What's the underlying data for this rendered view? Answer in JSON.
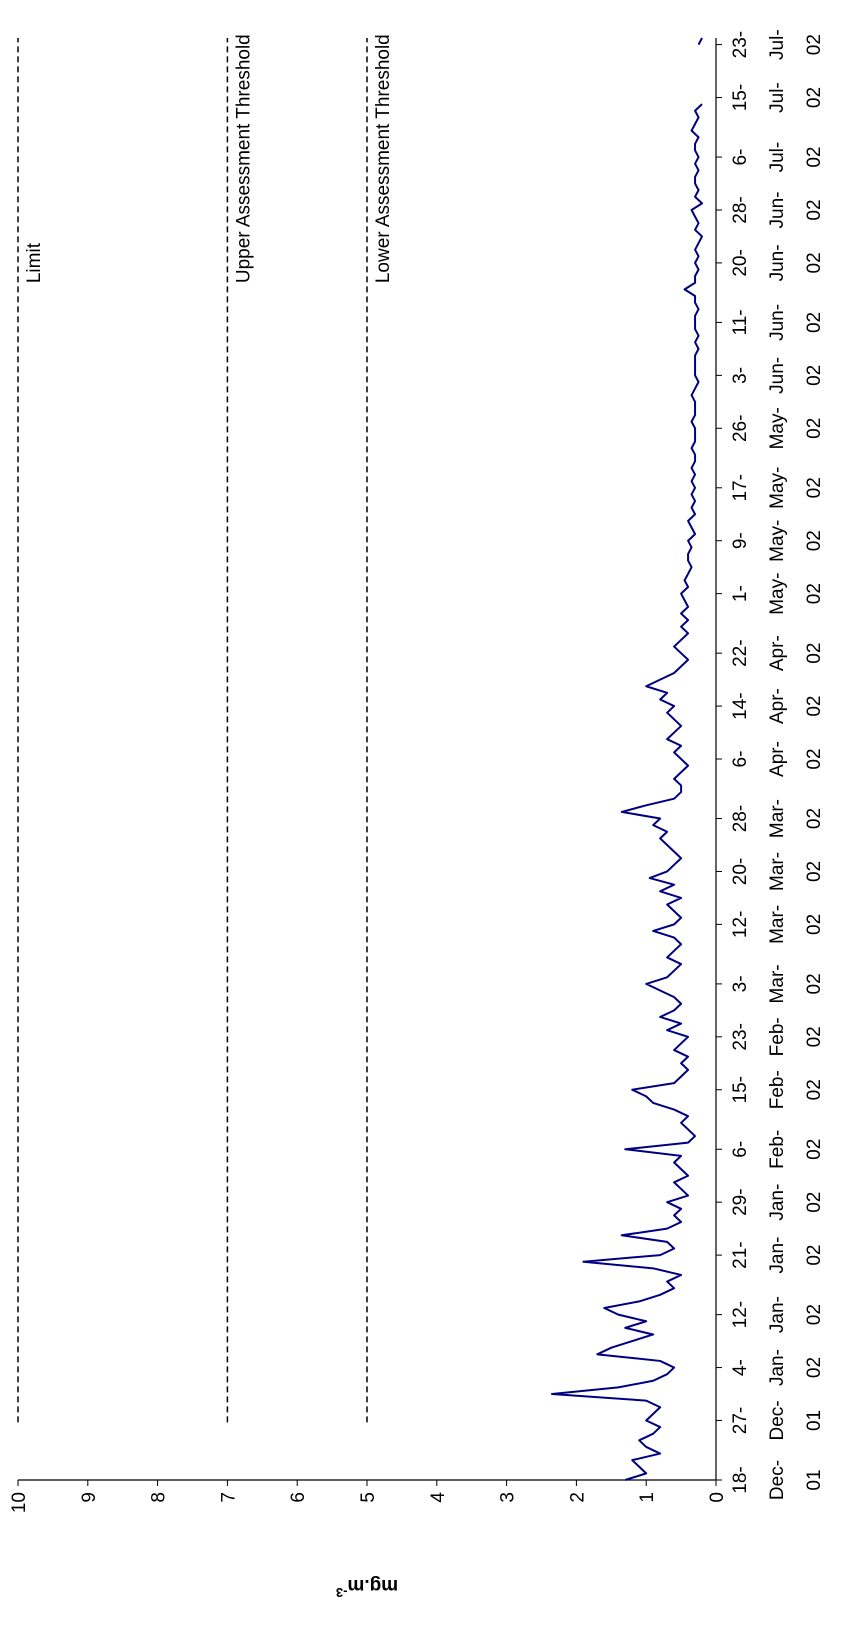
{
  "chart_data": {
    "type": "line",
    "ylabel": {
      "text": "mg.m",
      "superscript": "-3"
    },
    "ylim": [
      0,
      10
    ],
    "yticks": [
      0,
      1,
      2,
      3,
      4,
      5,
      6,
      7,
      8,
      9,
      10
    ],
    "xlim": [
      "2001-12-18",
      "2002-07-24"
    ],
    "xticks": [
      {
        "value": "2001-12-18",
        "label": "18-Dec-01"
      },
      {
        "value": "2001-12-27",
        "label": "27-Dec-01"
      },
      {
        "value": "2002-01-04",
        "label": "4-Jan-02"
      },
      {
        "value": "2002-01-12",
        "label": "12-Jan-02"
      },
      {
        "value": "2002-01-21",
        "label": "21-Jan-02"
      },
      {
        "value": "2002-01-29",
        "label": "29-Jan-02"
      },
      {
        "value": "2002-02-06",
        "label": "6-Feb-02"
      },
      {
        "value": "2002-02-15",
        "label": "15-Feb-02"
      },
      {
        "value": "2002-02-23",
        "label": "23-Feb-02"
      },
      {
        "value": "2002-03-03",
        "label": "3-Mar-02"
      },
      {
        "value": "2002-03-12",
        "label": "12-Mar-02"
      },
      {
        "value": "2002-03-20",
        "label": "20-Mar-02"
      },
      {
        "value": "2002-03-28",
        "label": "28-Mar-02"
      },
      {
        "value": "2002-04-06",
        "label": "6-Apr-02"
      },
      {
        "value": "2002-04-14",
        "label": "14-Apr-02"
      },
      {
        "value": "2002-04-22",
        "label": "22-Apr-02"
      },
      {
        "value": "2002-05-01",
        "label": "1-May-02"
      },
      {
        "value": "2002-05-09",
        "label": "9-May-02"
      },
      {
        "value": "2002-05-17",
        "label": "17-May-02"
      },
      {
        "value": "2002-05-26",
        "label": "26-May-02"
      },
      {
        "value": "2002-06-03",
        "label": "3-Jun-02"
      },
      {
        "value": "2002-06-11",
        "label": "11-Jun-02"
      },
      {
        "value": "2002-06-20",
        "label": "20-Jun-02"
      },
      {
        "value": "2002-06-28",
        "label": "28-Jun-02"
      },
      {
        "value": "2002-07-06",
        "label": "6-Jul-02"
      },
      {
        "value": "2002-07-15",
        "label": "15-Jul-02"
      },
      {
        "value": "2002-07-23",
        "label": "23-Jul-02"
      }
    ],
    "reference_lines": [
      {
        "name": "Limit",
        "value": 10
      },
      {
        "name": "Upper Assessment Threshold",
        "value": 7
      },
      {
        "name": "Lower Assessment Threshold",
        "value": 5
      }
    ],
    "x": [
      "2001-12-18",
      "2001-12-19",
      "2001-12-20",
      "2001-12-21",
      "2001-12-22",
      "2001-12-23",
      "2001-12-24",
      "2001-12-25",
      "2001-12-26",
      "2001-12-27",
      "2001-12-28",
      "2001-12-29",
      "2001-12-30",
      "2001-12-31",
      "2002-01-01",
      "2002-01-02",
      "2002-01-03",
      "2002-01-04",
      "2002-01-05",
      "2002-01-06",
      "2002-01-07",
      "2002-01-08",
      "2002-01-09",
      "2002-01-10",
      "2002-01-11",
      "2002-01-12",
      "2002-01-13",
      "2002-01-14",
      "2002-01-15",
      "2002-01-16",
      "2002-01-17",
      "2002-01-18",
      "2002-01-19",
      "2002-01-20",
      "2002-01-21",
      "2002-01-22",
      "2002-01-23",
      "2002-01-24",
      "2002-01-25",
      "2002-01-26",
      "2002-01-27",
      "2002-01-28",
      "2002-01-29",
      "2002-01-30",
      "2002-01-31",
      "2002-02-01",
      "2002-02-02",
      "2002-02-03",
      "2002-02-04",
      "2002-02-05",
      "2002-02-06",
      "2002-02-07",
      "2002-02-08",
      "2002-02-09",
      "2002-02-10",
      "2002-02-11",
      "2002-02-12",
      "2002-02-13",
      "2002-02-14",
      "2002-02-15",
      "2002-02-16",
      "2002-02-17",
      "2002-02-18",
      "2002-02-19",
      "2002-02-20",
      "2002-02-21",
      "2002-02-22",
      "2002-02-23",
      "2002-02-24",
      "2002-02-25",
      "2002-02-26",
      "2002-02-27",
      "2002-02-28",
      "2002-03-01",
      "2002-03-02",
      "2002-03-03",
      "2002-03-04",
      "2002-03-05",
      "2002-03-06",
      "2002-03-07",
      "2002-03-08",
      "2002-03-09",
      "2002-03-10",
      "2002-03-11",
      "2002-03-12",
      "2002-03-13",
      "2002-03-14",
      "2002-03-15",
      "2002-03-16",
      "2002-03-17",
      "2002-03-18",
      "2002-03-19",
      "2002-03-20",
      "2002-03-21",
      "2002-03-22",
      "2002-03-23",
      "2002-03-24",
      "2002-03-25",
      "2002-03-26",
      "2002-03-27",
      "2002-03-28",
      "2002-03-29",
      "2002-03-30",
      "2002-03-31",
      "2002-04-01",
      "2002-04-02",
      "2002-04-03",
      "2002-04-04",
      "2002-04-05",
      "2002-04-06",
      "2002-04-07",
      "2002-04-08",
      "2002-04-09",
      "2002-04-10",
      "2002-04-11",
      "2002-04-12",
      "2002-04-13",
      "2002-04-14",
      "2002-04-15",
      "2002-04-16",
      "2002-04-17",
      "2002-04-18",
      "2002-04-19",
      "2002-04-20",
      "2002-04-21",
      "2002-04-22",
      "2002-04-23",
      "2002-04-24",
      "2002-04-25",
      "2002-04-26",
      "2002-04-27",
      "2002-04-28",
      "2002-04-29",
      "2002-04-30",
      "2002-05-01",
      "2002-05-02",
      "2002-05-03",
      "2002-05-04",
      "2002-05-05",
      "2002-05-06",
      "2002-05-07",
      "2002-05-08",
      "2002-05-09",
      "2002-05-10",
      "2002-05-11",
      "2002-05-12",
      "2002-05-13",
      "2002-05-14",
      "2002-05-15",
      "2002-05-16",
      "2002-05-17",
      "2002-05-18",
      "2002-05-19",
      "2002-05-20",
      "2002-05-21",
      "2002-05-22",
      "2002-05-23",
      "2002-05-24",
      "2002-05-25",
      "2002-05-26",
      "2002-05-27",
      "2002-05-28",
      "2002-05-29",
      "2002-05-30",
      "2002-05-31",
      "2002-06-01",
      "2002-06-02",
      "2002-06-03",
      "2002-06-04",
      "2002-06-05",
      "2002-06-06",
      "2002-06-07",
      "2002-06-08",
      "2002-06-09",
      "2002-06-10",
      "2002-06-11",
      "2002-06-12",
      "2002-06-13",
      "2002-06-14",
      "2002-06-15",
      "2002-06-16",
      "2002-06-17",
      "2002-06-18",
      "2002-06-19",
      "2002-06-20",
      "2002-06-21",
      "2002-06-22",
      "2002-06-23",
      "2002-06-24",
      "2002-06-25",
      "2002-06-26",
      "2002-06-27",
      "2002-06-28",
      "2002-06-29",
      "2002-06-30",
      "2002-07-01",
      "2002-07-02",
      "2002-07-03",
      "2002-07-04",
      "2002-07-05",
      "2002-07-06",
      "2002-07-07",
      "2002-07-08",
      "2002-07-09",
      "2002-07-10",
      "2002-07-11",
      "2002-07-12",
      "2002-07-13",
      "2002-07-14",
      "2002-07-15",
      "2002-07-16",
      "2002-07-17",
      "2002-07-18",
      "2002-07-19",
      "2002-07-20",
      "2002-07-21",
      "2002-07-22",
      "2002-07-23",
      "2002-07-24"
    ],
    "series": [
      {
        "color": "#000080",
        "values": [
          1.3,
          1.0,
          1.1,
          1.2,
          0.8,
          1.0,
          1.1,
          0.9,
          0.8,
          1.0,
          0.9,
          0.8,
          1.0,
          2.35,
          1.4,
          0.9,
          0.7,
          0.6,
          0.8,
          1.7,
          1.5,
          1.2,
          0.9,
          1.3,
          1.0,
          1.4,
          1.6,
          1.1,
          0.8,
          0.6,
          0.7,
          0.5,
          0.9,
          1.9,
          0.8,
          0.6,
          0.7,
          1.35,
          0.7,
          0.5,
          0.6,
          0.5,
          0.7,
          0.4,
          0.5,
          0.6,
          0.4,
          0.5,
          0.6,
          0.5,
          1.3,
          0.4,
          0.3,
          0.4,
          0.5,
          0.4,
          0.6,
          0.9,
          1.0,
          1.2,
          0.6,
          0.5,
          0.4,
          0.5,
          0.4,
          0.6,
          0.5,
          0.4,
          0.7,
          0.5,
          0.8,
          0.6,
          0.5,
          0.6,
          0.8,
          1.0,
          0.7,
          0.6,
          0.5,
          0.7,
          0.6,
          0.5,
          0.6,
          0.9,
          0.6,
          0.5,
          0.6,
          0.7,
          0.5,
          0.8,
          0.6,
          0.95,
          0.7,
          0.6,
          0.5,
          0.6,
          0.7,
          0.8,
          0.7,
          0.9,
          0.8,
          1.35,
          1.0,
          0.6,
          0.5,
          0.5,
          0.6,
          0.5,
          0.4,
          0.5,
          0.6,
          0.5,
          0.7,
          0.6,
          0.5,
          0.6,
          0.7,
          0.6,
          0.8,
          0.7,
          1.0,
          0.8,
          0.6,
          0.5,
          0.4,
          0.5,
          0.6,
          0.5,
          0.4,
          0.5,
          0.4,
          0.5,
          0.4,
          0.45,
          0.5,
          0.4,
          0.45,
          0.4,
          0.35,
          0.4,
          0.4,
          0.35,
          0.4,
          0.3,
          0.35,
          0.4,
          0.3,
          0.35,
          0.3,
          0.35,
          0.3,
          0.35,
          0.3,
          0.35,
          0.3,
          0.3,
          0.35,
          0.3,
          0.3,
          0.3,
          0.35,
          0.3,
          0.3,
          0.3,
          0.35,
          0.3,
          0.25,
          0.3,
          0.3,
          0.3,
          0.3,
          0.25,
          0.3,
          0.25,
          0.3,
          0.3,
          0.3,
          0.25,
          0.3,
          0.3,
          0.45,
          0.3,
          0.3,
          0.25,
          0.3,
          0.25,
          0.3,
          0.25,
          0.2,
          0.3,
          0.25,
          0.3,
          0.35,
          0.2,
          0.3,
          0.25,
          0.3,
          0.3,
          0.25,
          0.3,
          0.25,
          0.3,
          0.3,
          0.25,
          0.35,
          0.3,
          0.25,
          0.3,
          0.2,
          null,
          null,
          null,
          null,
          null,
          null,
          null,
          null,
          0.25,
          0.2
        ]
      }
    ]
  }
}
